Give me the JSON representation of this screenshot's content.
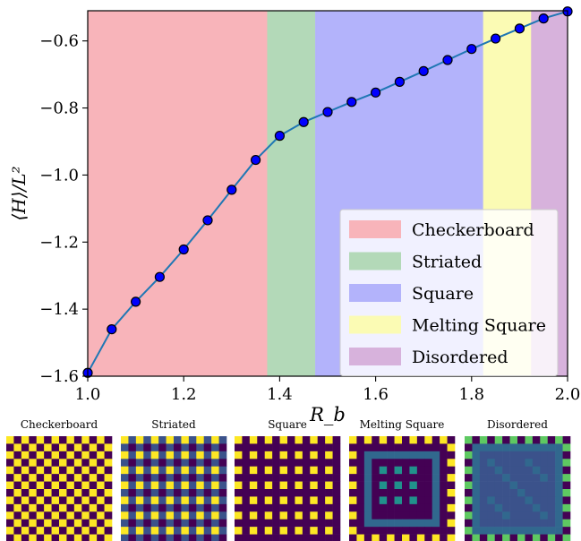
{
  "chart_data": {
    "type": "line",
    "xlabel": "R_b",
    "ylabel": "⟨H⟩/L²",
    "xlim": [
      1.0,
      2.0
    ],
    "ylim": [
      -1.6,
      -0.51
    ],
    "xticks": [
      1.0,
      1.2,
      1.4,
      1.6,
      1.8,
      2.0
    ],
    "xtick_labels": [
      "1.0",
      "1.2",
      "1.4",
      "1.6",
      "1.8",
      "2.0"
    ],
    "yticks": [
      -1.6,
      -1.4,
      -1.2,
      -1.0,
      -0.8,
      -0.6
    ],
    "ytick_labels": [
      "−1.6",
      "−1.4",
      "−1.2",
      "−1.0",
      "−0.8",
      "−0.6"
    ],
    "grid": false,
    "legend_position": "lower-right",
    "regions": [
      {
        "name": "Checkerboard",
        "x_start": 1.0,
        "x_end": 1.375,
        "color": "#f8b4ba"
      },
      {
        "name": "Striated",
        "x_start": 1.375,
        "x_end": 1.475,
        "color": "#b3d9b8"
      },
      {
        "name": "Square",
        "x_start": 1.475,
        "x_end": 1.825,
        "color": "#b3b3fb"
      },
      {
        "name": "Melting Square",
        "x_start": 1.825,
        "x_end": 1.925,
        "color": "#fbfbb4"
      },
      {
        "name": "Disordered",
        "x_start": 1.925,
        "x_end": 2.0,
        "color": "#d7b2dc"
      }
    ],
    "series": [
      {
        "line_color": "#1f77b4",
        "marker_color": "#0000ff",
        "x": [
          1.0,
          1.05,
          1.1,
          1.15,
          1.2,
          1.25,
          1.3,
          1.35,
          1.4,
          1.45,
          1.5,
          1.55,
          1.6,
          1.65,
          1.7,
          1.75,
          1.8,
          1.85,
          1.9,
          1.95,
          2.0
        ],
        "y": [
          -1.59,
          -1.46,
          -1.378,
          -1.304,
          -1.222,
          -1.135,
          -1.044,
          -0.955,
          -0.883,
          -0.842,
          -0.812,
          -0.782,
          -0.754,
          -0.722,
          -0.69,
          -0.657,
          -0.624,
          -0.593,
          -0.563,
          -0.533,
          -0.512
        ]
      }
    ]
  },
  "snapshots": [
    {
      "label": "Checkerboard",
      "pattern": "checkerboard"
    },
    {
      "label": "Striated",
      "pattern": "striated"
    },
    {
      "label": "Square",
      "pattern": "square"
    },
    {
      "label": "Melting Square",
      "pattern": "melting"
    },
    {
      "label": "Disordered",
      "pattern": "disordered"
    }
  ],
  "palette": {
    "dark": "#440154",
    "yellow": "#fde725",
    "mid": "#3b528b",
    "teal": "#21918c",
    "slate": "#31688e",
    "green": "#5ec962"
  }
}
